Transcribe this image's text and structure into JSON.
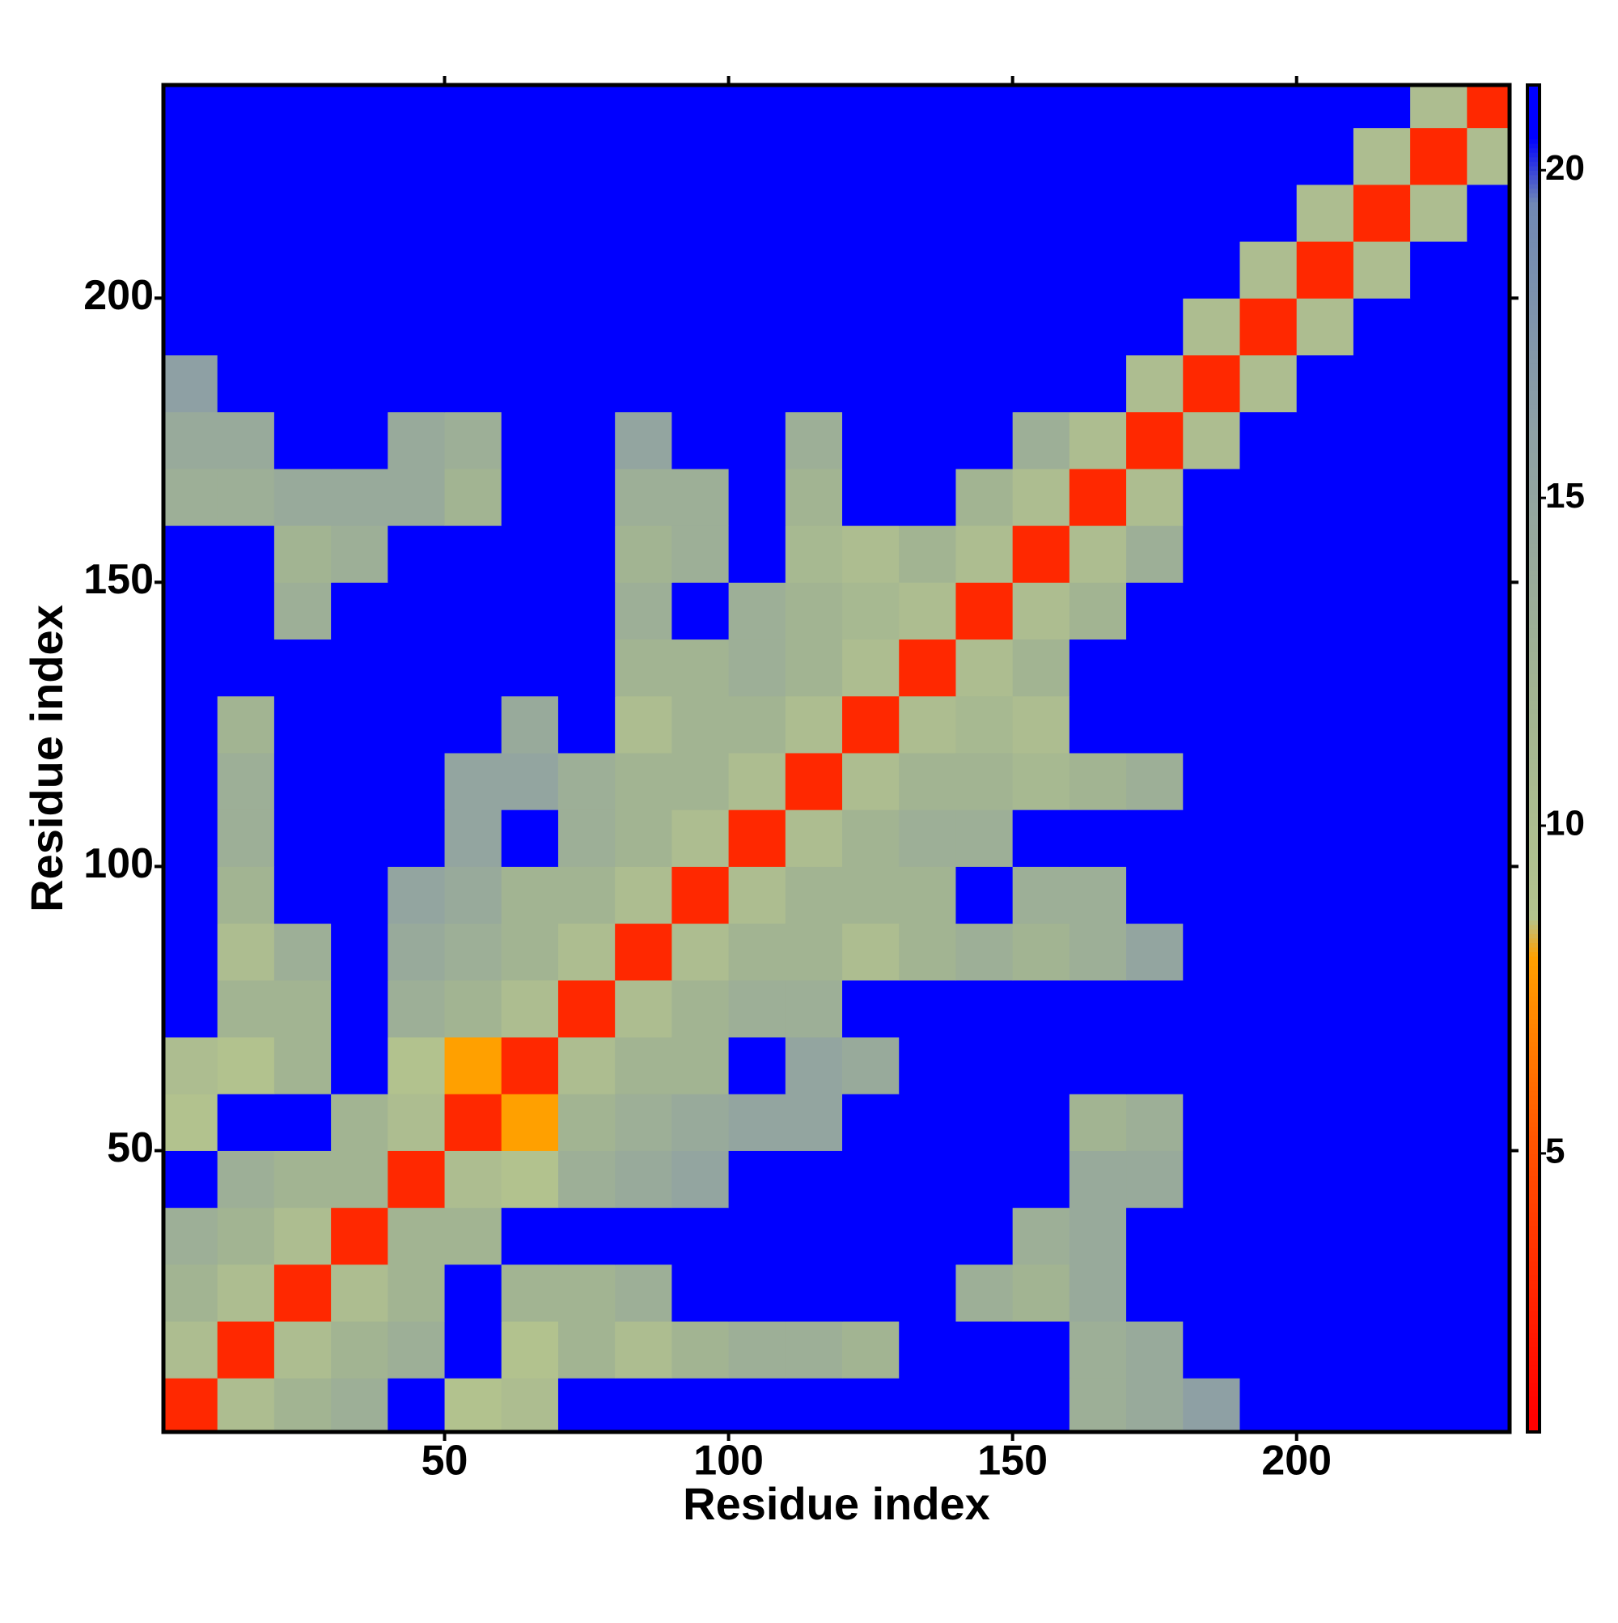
{
  "chart_data": {
    "type": "heatmap",
    "x_label": "Residue index",
    "y_label": "Residue index",
    "xlim": [
      0.5,
      237.5
    ],
    "ylim": [
      0.5,
      237.5
    ],
    "xticks": [
      50,
      100,
      150,
      200
    ],
    "yticks": [
      50,
      100,
      150,
      200
    ],
    "zlim": [
      0.75,
      21.3
    ],
    "zticks": [
      5,
      10,
      15,
      20
    ],
    "colorscale": [
      [
        1,
        "#ff0000"
      ],
      [
        5,
        "#ff5000"
      ],
      [
        8,
        "#ffa000"
      ],
      [
        8.6,
        "#b4c48e"
      ],
      [
        12,
        "#a2b492"
      ],
      [
        16,
        "#8ea0a4"
      ],
      [
        19.5,
        "#7088b4"
      ],
      [
        20.5,
        "#0000ff"
      ]
    ],
    "x": [
      5,
      15,
      25,
      35,
      45,
      55,
      65,
      75,
      85,
      95,
      105,
      115,
      125,
      135,
      145,
      155,
      165,
      175,
      185,
      195,
      205,
      215,
      225,
      235
    ],
    "y": [
      5,
      15,
      25,
      35,
      45,
      55,
      65,
      75,
      85,
      95,
      105,
      115,
      125,
      135,
      145,
      155,
      165,
      175,
      185,
      195,
      205,
      215,
      225,
      235
    ],
    "z": [
      [
        3,
        10,
        12,
        13,
        21,
        9,
        10,
        21,
        21,
        21,
        21,
        21,
        21,
        21,
        21,
        21,
        13,
        14,
        16,
        21,
        21,
        21,
        21,
        21
      ],
      [
        10,
        3,
        10,
        12,
        13,
        21,
        9,
        12,
        10,
        12,
        13,
        13,
        12,
        21,
        21,
        21,
        13,
        14,
        21,
        21,
        21,
        21,
        21,
        21
      ],
      [
        12,
        10,
        3,
        10,
        12,
        21,
        12,
        12,
        13,
        21,
        21,
        21,
        21,
        21,
        13,
        12,
        14,
        21,
        21,
        21,
        21,
        21,
        21,
        21
      ],
      [
        13,
        12,
        10,
        3,
        12,
        12,
        21,
        21,
        21,
        21,
        21,
        21,
        21,
        21,
        21,
        13,
        14,
        21,
        21,
        21,
        21,
        21,
        21,
        21
      ],
      [
        21,
        13,
        12,
        12,
        3,
        10,
        9,
        13,
        14,
        15,
        21,
        21,
        21,
        21,
        21,
        21,
        14,
        14,
        21,
        21,
        21,
        21,
        21,
        21
      ],
      [
        9,
        21,
        21,
        12,
        10,
        3,
        8,
        12,
        13,
        14,
        15,
        15,
        21,
        21,
        21,
        21,
        12,
        13,
        21,
        21,
        21,
        21,
        21,
        21
      ],
      [
        10,
        9,
        12,
        21,
        9,
        8,
        3,
        10,
        12,
        12,
        21,
        15,
        14,
        21,
        21,
        21,
        21,
        21,
        21,
        21,
        21,
        21,
        21,
        21
      ],
      [
        21,
        12,
        12,
        21,
        13,
        12,
        10,
        3,
        10,
        12,
        13,
        13,
        21,
        21,
        21,
        21,
        21,
        21,
        21,
        21,
        21,
        21,
        21,
        21
      ],
      [
        21,
        10,
        13,
        21,
        14,
        13,
        12,
        10,
        3,
        10,
        12,
        12,
        10,
        12,
        13,
        12,
        13,
        15,
        21,
        21,
        21,
        21,
        21,
        21
      ],
      [
        21,
        12,
        21,
        21,
        15,
        14,
        12,
        12,
        10,
        3,
        10,
        12,
        12,
        12,
        21,
        13,
        13,
        21,
        21,
        21,
        21,
        21,
        21,
        21
      ],
      [
        21,
        13,
        21,
        21,
        21,
        15,
        21,
        13,
        12,
        10,
        3,
        10,
        12,
        13,
        13,
        21,
        21,
        21,
        21,
        21,
        21,
        21,
        21,
        21
      ],
      [
        21,
        13,
        21,
        21,
        21,
        15,
        15,
        13,
        12,
        12,
        10,
        3,
        10,
        12,
        12,
        11,
        12,
        13,
        21,
        21,
        21,
        21,
        21,
        21
      ],
      [
        21,
        12,
        21,
        21,
        21,
        21,
        14,
        21,
        10,
        12,
        12,
        10,
        3,
        10,
        11,
        10,
        21,
        21,
        21,
        21,
        21,
        21,
        21,
        21
      ],
      [
        21,
        21,
        21,
        21,
        21,
        21,
        21,
        21,
        12,
        12,
        13,
        12,
        10,
        3,
        10,
        12,
        21,
        21,
        21,
        21,
        21,
        21,
        21,
        21
      ],
      [
        21,
        21,
        13,
        21,
        21,
        21,
        21,
        21,
        13,
        21,
        13,
        12,
        11,
        10,
        3,
        10,
        12,
        21,
        21,
        21,
        21,
        21,
        21,
        21
      ],
      [
        21,
        21,
        12,
        13,
        21,
        21,
        21,
        21,
        12,
        13,
        21,
        11,
        10,
        12,
        10,
        3,
        10,
        13,
        21,
        21,
        21,
        21,
        21,
        21
      ],
      [
        13,
        13,
        14,
        14,
        14,
        12,
        21,
        21,
        13,
        13,
        21,
        12,
        21,
        21,
        12,
        10,
        3,
        10,
        21,
        21,
        21,
        21,
        21,
        21
      ],
      [
        14,
        14,
        21,
        21,
        14,
        13,
        21,
        21,
        15,
        21,
        21,
        13,
        21,
        21,
        21,
        13,
        10,
        3,
        10,
        21,
        21,
        21,
        21,
        21
      ],
      [
        16,
        21,
        21,
        21,
        21,
        21,
        21,
        21,
        21,
        21,
        21,
        21,
        21,
        21,
        21,
        21,
        21,
        10,
        3,
        10,
        21,
        21,
        21,
        21
      ],
      [
        21,
        21,
        21,
        21,
        21,
        21,
        21,
        21,
        21,
        21,
        21,
        21,
        21,
        21,
        21,
        21,
        21,
        21,
        10,
        3,
        10,
        21,
        21,
        21
      ],
      [
        21,
        21,
        21,
        21,
        21,
        21,
        21,
        21,
        21,
        21,
        21,
        21,
        21,
        21,
        21,
        21,
        21,
        21,
        21,
        10,
        3,
        10,
        21,
        21
      ],
      [
        21,
        21,
        21,
        21,
        21,
        21,
        21,
        21,
        21,
        21,
        21,
        21,
        21,
        21,
        21,
        21,
        21,
        21,
        21,
        21,
        10,
        3,
        10,
        21
      ],
      [
        21,
        21,
        21,
        21,
        21,
        21,
        21,
        21,
        21,
        21,
        21,
        21,
        21,
        21,
        21,
        21,
        21,
        21,
        21,
        21,
        21,
        10,
        3,
        10
      ],
      [
        21,
        21,
        21,
        21,
        21,
        21,
        21,
        21,
        21,
        21,
        21,
        21,
        21,
        21,
        21,
        21,
        21,
        21,
        21,
        21,
        21,
        21,
        10,
        3
      ]
    ]
  }
}
